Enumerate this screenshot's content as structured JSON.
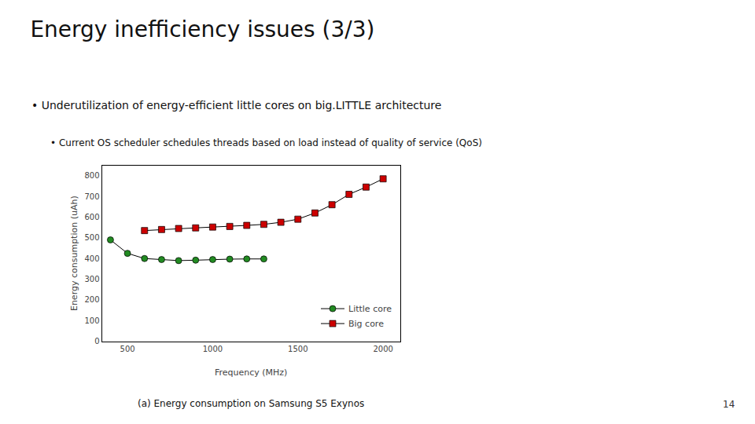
{
  "chart_data": {
    "type": "line",
    "title": "Energy inefficiency issues (3/3)",
    "annotations": [
      "• Underutilization of energy-efficient little cores on big.LITTLE architecture",
      "• Current OS scheduler schedules threads based on load instead of quality of service (QoS)",
      "(a) Energy consumption on Samsung S5 Exynos",
      "14"
    ],
    "x_label": "Frequency (MHz)",
    "y_label": "Energy consumption (uAh)",
    "series": [
      {
        "name": "Little core",
        "color": "#228B22",
        "marker": "circle",
        "x": [
          400,
          500,
          600,
          700,
          800,
          900,
          1000,
          1100,
          1200,
          1300
        ],
        "values": [
          490,
          425,
          400,
          395,
          390,
          392,
          395,
          397,
          398,
          398
        ]
      },
      {
        "name": "Big core",
        "color": "#CC0000",
        "marker": "square",
        "x": [
          600,
          700,
          800,
          900,
          1000,
          1100,
          1200,
          1300,
          1400,
          1500,
          1600,
          1700,
          1800,
          1900,
          2000
        ],
        "values": [
          535,
          540,
          545,
          548,
          552,
          555,
          560,
          565,
          575,
          590,
          620,
          660,
          710,
          745,
          785
        ]
      }
    ],
    "xlim": [
      350,
      2100
    ],
    "xticks": [
      500,
      1000,
      1500,
      2000
    ],
    "ylim": [
      0,
      850
    ],
    "yticks": [
      0,
      100,
      200,
      300,
      400,
      500,
      600,
      700,
      800
    ],
    "grid": false,
    "legend": "lower right"
  }
}
